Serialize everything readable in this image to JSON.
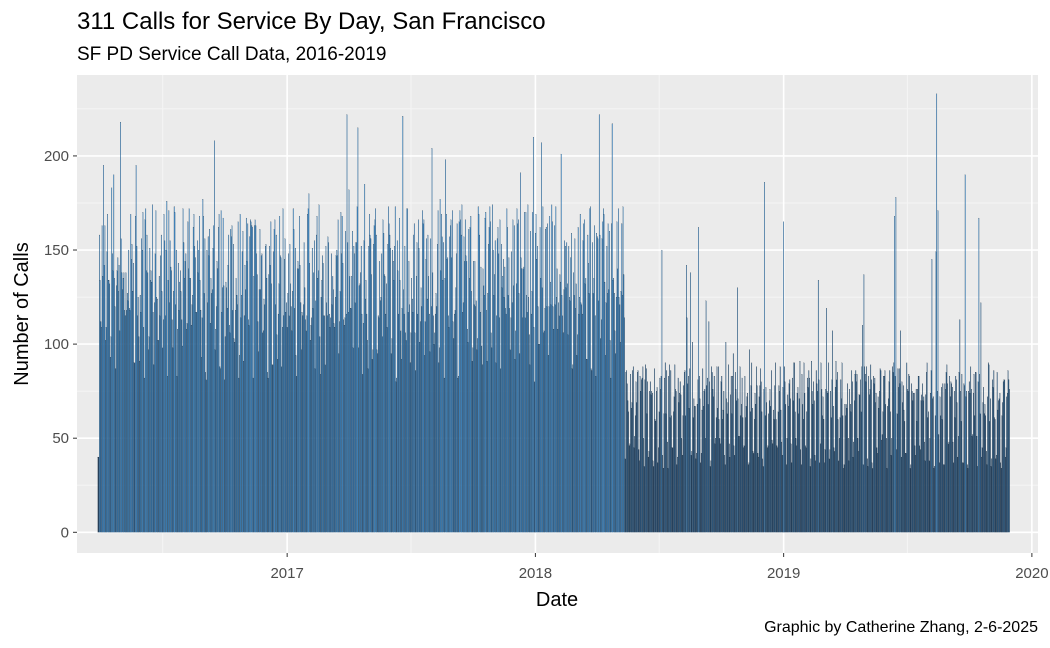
{
  "chart_data": {
    "type": "bar",
    "title": "311 Calls for Service By Day, San Francisco",
    "subtitle": "SF PD Service Call Data, 2016-2019",
    "caption": "Graphic by Catherine Zhang, 2-6-2025",
    "xlabel": "Date",
    "ylabel": "Number of Calls",
    "x_range": [
      "2016-02-27",
      "2020-01-10"
    ],
    "ylim": [
      -11,
      243
    ],
    "y_ticks": [
      0,
      50,
      100,
      150,
      200
    ],
    "x_ticks": [
      "2017",
      "2018",
      "2019",
      "2020"
    ],
    "grid": true,
    "legend": "none",
    "data_start": "2016-03-29",
    "data_end": "2019-11-29",
    "fill_colors": {
      "high": "#3a8ccf",
      "low": "#1c3b5a"
    },
    "series": [
      {
        "period": [
          "2016-03-29",
          "2018-05-12"
        ],
        "weekday_level": 135,
        "weekend_level": 95,
        "daily_range": [
          80,
          222
        ]
      },
      {
        "period": [
          "2018-05-13",
          "2019-11-29"
        ],
        "weekday_level": 70,
        "weekend_level": 40,
        "daily_range": [
          25,
          233
        ]
      }
    ],
    "peaks": [
      {
        "date": "2016-05-01",
        "value": 218
      },
      {
        "date": "2017-04-15",
        "value": 215
      },
      {
        "date": "2018-01-10",
        "value": 207
      },
      {
        "date": "2018-04-05",
        "value": 222
      },
      {
        "date": "2018-04-24",
        "value": 217
      },
      {
        "date": "2018-10-25",
        "value": 130
      },
      {
        "date": "2019-03-05",
        "value": 119
      },
      {
        "date": "2019-06-15",
        "value": 178
      },
      {
        "date": "2019-08-14",
        "value": 233
      },
      {
        "date": "2019-09-25",
        "value": 190
      }
    ]
  }
}
